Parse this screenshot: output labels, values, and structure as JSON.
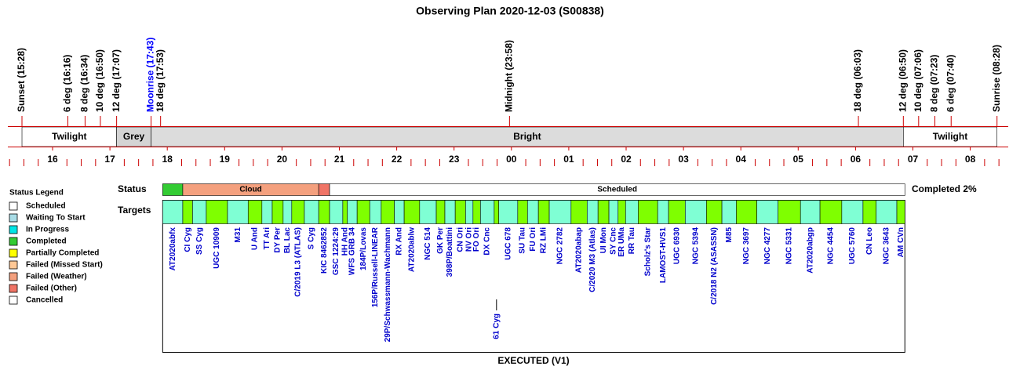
{
  "chart_data": {
    "type": "observing-plan",
    "title": "Observing Plan 2020-12-03 (S00838)",
    "footer": "EXECUTED (V1)",
    "status_row_label": "Status",
    "targets_row_label": "Targets",
    "summary": "Completed 2%",
    "xlim": [
      15,
      33
    ],
    "xticks": [
      {
        "value": 16,
        "label": "16"
      },
      {
        "value": 17,
        "label": "17"
      },
      {
        "value": 18,
        "label": "18"
      },
      {
        "value": 19,
        "label": "19"
      },
      {
        "value": 20,
        "label": "20"
      },
      {
        "value": 21,
        "label": "21"
      },
      {
        "value": 22,
        "label": "22"
      },
      {
        "value": 23,
        "label": "23"
      },
      {
        "value": 24,
        "label": "00"
      },
      {
        "value": 25,
        "label": "01"
      },
      {
        "value": 26,
        "label": "02"
      },
      {
        "value": 27,
        "label": "03"
      },
      {
        "value": 28,
        "label": "04"
      },
      {
        "value": 29,
        "label": "05"
      },
      {
        "value": 30,
        "label": "06"
      },
      {
        "value": 31,
        "label": "07"
      },
      {
        "value": 32,
        "label": "08"
      }
    ],
    "events": [
      {
        "label": "Sunset (15:28)",
        "color": "#000000"
      },
      {
        "label": "6 deg (16:16)",
        "color": "#000000"
      },
      {
        "label": "8 deg (16:34)",
        "color": "#000000"
      },
      {
        "label": "10 deg (16:50)",
        "color": "#000000"
      },
      {
        "label": "12 deg (17:07)",
        "color": "#000000"
      },
      {
        "label": "Moonrise (17:43)",
        "color": "#0000ff"
      },
      {
        "label": "18 deg (17:53)",
        "color": "#000000"
      },
      {
        "label": "Midnight (23:58)",
        "color": "#000000"
      },
      {
        "label": "18 deg (06:03)",
        "color": "#000000"
      },
      {
        "label": "12 deg (06:50)",
        "color": "#000000"
      },
      {
        "label": "10 deg (07:06)",
        "color": "#000000"
      },
      {
        "label": "8 deg (07:23)",
        "color": "#000000"
      },
      {
        "label": "6 deg (07:40)",
        "color": "#000000"
      },
      {
        "label": "Sunrise (08:28)",
        "color": "#000000"
      }
    ],
    "bands": [
      {
        "label": "Twilight",
        "color": "#ffffff"
      },
      {
        "label": "Grey",
        "color": "#d4d4d4"
      },
      {
        "label": "Bright",
        "color": "#dcdcdc"
      },
      {
        "label": "Twilight",
        "color": "#ffffff"
      }
    ],
    "legend": {
      "title": "Status Legend",
      "items": [
        {
          "name": "Scheduled",
          "color": "#ffffff"
        },
        {
          "name": "Waiting To Start",
          "color": "#a8dce6"
        },
        {
          "name": "In Progress",
          "color": "#00e5e5"
        },
        {
          "name": "Completed",
          "color": "#33cc33"
        },
        {
          "name": "Partially Completed",
          "color": "#ffff00"
        },
        {
          "name": "Failed (Missed Start)",
          "color": "#ffc896"
        },
        {
          "name": "Failed (Weather)",
          "color": "#f4a07e"
        },
        {
          "name": "Failed (Other)",
          "color": "#f07466"
        },
        {
          "name": "Cancelled",
          "color": "#ffffff"
        }
      ]
    },
    "status_segments": [
      {
        "status": 3,
        "start": 17.92,
        "end": 18.27
      },
      {
        "status": 6,
        "label": "Cloud",
        "start": 18.27,
        "end": 20.64
      },
      {
        "status": 7,
        "start": 20.64,
        "end": 20.83
      },
      {
        "status": 0,
        "label": "Scheduled",
        "start": 20.83,
        "end": 30.86
      }
    ],
    "target_colors": [
      "#7fffd4",
      "#7fff00"
    ],
    "targets_end": 30.86,
    "targets": [
      {
        "name": "AT2020abfx",
        "start": 17.92
      },
      {
        "name": "CI Cyg",
        "start": 18.27
      },
      {
        "name": "SS Cyg",
        "start": 18.44
      },
      {
        "name": "UGC 10909",
        "start": 18.68
      },
      {
        "name": "M31",
        "start": 19.05
      },
      {
        "name": "U And",
        "start": 19.41
      },
      {
        "name": "TT Ari",
        "start": 19.65
      },
      {
        "name": "DY Per",
        "start": 19.83
      },
      {
        "name": "BL Lac",
        "start": 20.02
      },
      {
        "name": "C/2019 L3 (ATLAS)",
        "start": 20.17
      },
      {
        "name": "S Cyg",
        "start": 20.39
      },
      {
        "name": "KIC 8462852",
        "start": 20.64
      },
      {
        "name": "GSC 1224:29",
        "start": 20.83
      },
      {
        "name": "HH And",
        "start": 21.06
      },
      {
        "name": "WFS GRB 34",
        "start": 21.14
      },
      {
        "name": "184P/Lovas",
        "start": 21.31
      },
      {
        "name": "156P/Russell-LINEAR",
        "start": 21.53
      },
      {
        "name": "29P/Schwassmann-Wachmann",
        "start": 21.73
      },
      {
        "name": "RX And",
        "start": 21.96
      },
      {
        "name": "AT2020ablw",
        "start": 22.13
      },
      {
        "name": "NGC 514",
        "start": 22.4
      },
      {
        "name": "GK Per",
        "start": 22.69
      },
      {
        "name": "398P/Boattini",
        "start": 22.84
      },
      {
        "name": "CN Ori",
        "start": 23.02
      },
      {
        "name": "NV Ori",
        "start": 23.2
      },
      {
        "name": "FO Ori",
        "start": 23.33
      },
      {
        "name": "DX Cnc",
        "start": 23.46
      },
      {
        "name": "61 Cyg",
        "start": 23.7
      },
      {
        "name": "UGC 678",
        "start": 23.78
      },
      {
        "name": "SU Tau",
        "start": 24.11
      },
      {
        "name": "FU Ori",
        "start": 24.28
      },
      {
        "name": "RZ LMi",
        "start": 24.47
      },
      {
        "name": "NGC 2782",
        "start": 24.66
      },
      {
        "name": "AT2020abap",
        "start": 25.04
      },
      {
        "name": "C/2020 M3 (Atlas)",
        "start": 25.32
      },
      {
        "name": "UI Mon",
        "start": 25.51
      },
      {
        "name": "SY Cnc",
        "start": 25.7
      },
      {
        "name": "ER UMa",
        "start": 25.86
      },
      {
        "name": "RR Tau",
        "start": 25.99
      },
      {
        "name": "Scholz's Star",
        "start": 26.21
      },
      {
        "name": "LAMOST-HVS1",
        "start": 26.55
      },
      {
        "name": "UGC 6930",
        "start": 26.74
      },
      {
        "name": "NGC 5394",
        "start": 27.03
      },
      {
        "name": "C/2018 N2 (ASASSN)",
        "start": 27.4
      },
      {
        "name": "M85",
        "start": 27.67
      },
      {
        "name": "NGC 3697",
        "start": 27.92
      },
      {
        "name": "NGC 4277",
        "start": 28.28
      },
      {
        "name": "NGC 5331",
        "start": 28.65
      },
      {
        "name": "AT2020abgp",
        "start": 29.04
      },
      {
        "name": "NGC 4454",
        "start": 29.38
      },
      {
        "name": "UGC 5760",
        "start": 29.76
      },
      {
        "name": "CN Leo",
        "start": 30.13
      },
      {
        "name": "NGC 3643",
        "start": 30.36
      },
      {
        "name": "AM CVn",
        "start": 30.72
      }
    ]
  }
}
